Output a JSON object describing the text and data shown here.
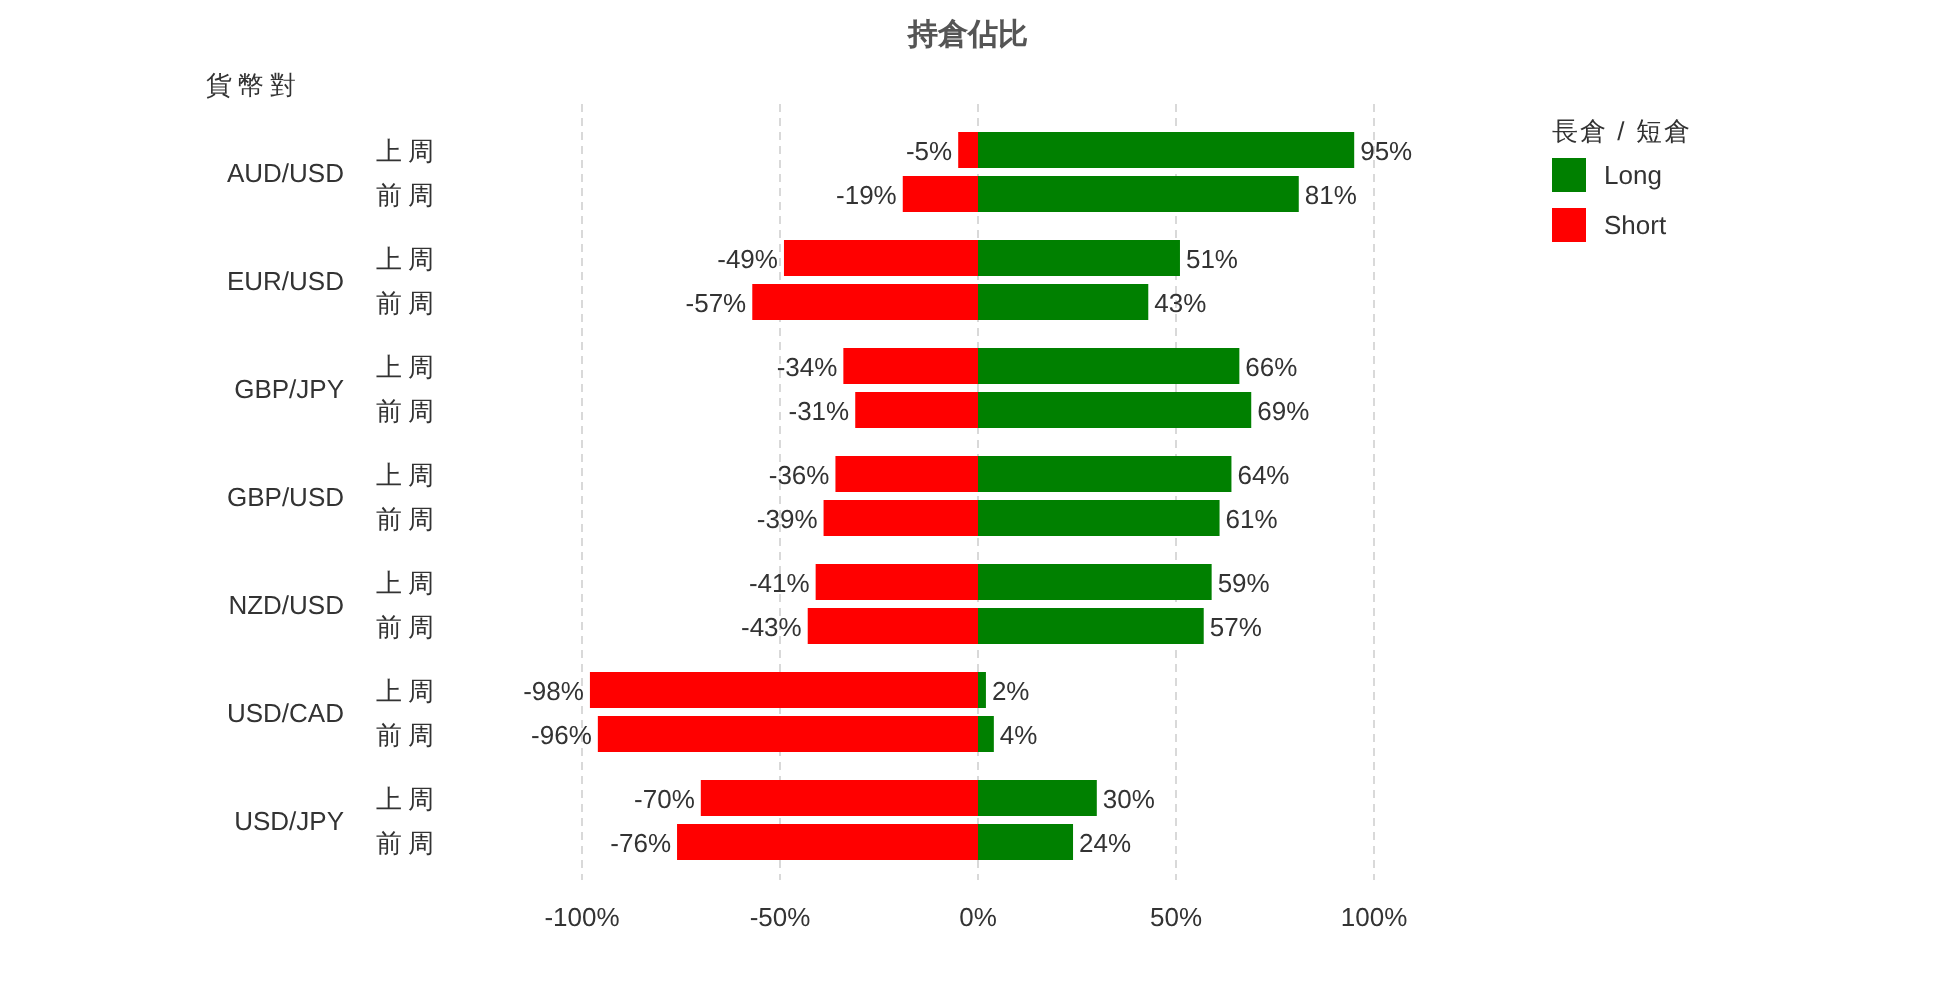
{
  "chart_data": {
    "type": "bar",
    "orientation": "horizontal",
    "stacked": true,
    "title": "持倉佔比",
    "ylabel": "貨幣對",
    "legend_title": "長倉 / 短倉",
    "legend": "top right",
    "grid": "x",
    "line_style": "dashed",
    "categories": [
      "上周",
      "前周",
      "上周",
      "前周",
      "上周",
      "前周",
      "上周",
      "前周",
      "上周",
      "前周",
      "上周",
      "前周",
      "上周",
      "前周"
    ],
    "annotations": [
      "AUD/USD",
      "EUR/USD",
      "GBP/JPY",
      "GBP/USD",
      "NZD/USD",
      "USD/CAD",
      "USD/JPY"
    ],
    "xlim": [
      -100,
      100
    ],
    "xticks": [
      {
        "value": -100,
        "label": "-100%"
      },
      {
        "value": -50,
        "label": "-50%"
      },
      {
        "value": 0,
        "label": "0%"
      },
      {
        "value": 50,
        "label": "50%"
      },
      {
        "value": 100,
        "label": "100%"
      }
    ],
    "series": [
      {
        "name": "Long",
        "color": "#008000",
        "values": [
          95,
          81,
          51,
          43,
          66,
          69,
          64,
          61,
          59,
          57,
          2,
          4,
          30,
          24
        ],
        "value_labels": [
          "95%",
          "81%",
          "51%",
          "43%",
          "66%",
          "69%",
          "64%",
          "61%",
          "59%",
          "57%",
          "2%",
          "4%",
          "30%",
          "24%"
        ]
      },
      {
        "name": "Short",
        "color": "#ff0000",
        "values": [
          -5,
          -19,
          -49,
          -57,
          -34,
          -31,
          -36,
          -39,
          -41,
          -43,
          -98,
          -96,
          -70,
          -76
        ],
        "value_labels": [
          "-5%",
          "-19%",
          "-49%",
          "-57%",
          "-34%",
          "-31%",
          "-36%",
          "-39%",
          "-41%",
          "-43%",
          "-98%",
          "-96%",
          "-70%",
          "-76%"
        ]
      }
    ]
  }
}
